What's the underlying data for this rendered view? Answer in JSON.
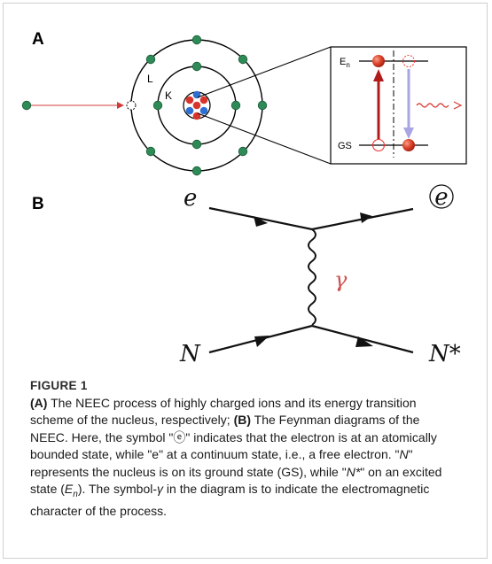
{
  "panels": {
    "a_letter": "A",
    "b_letter": "B"
  },
  "atom": {
    "shell_l": "L",
    "shell_k": "K"
  },
  "inset": {
    "upper_level": "E",
    "upper_level_sub": "n",
    "lower_level": "GS"
  },
  "feynman": {
    "e_in": "e",
    "e_out": "e",
    "n_in": "N",
    "n_out": "N*",
    "photon": "γ"
  },
  "caption": {
    "title": "FIGURE 1",
    "a_tag": "(A)",
    "a_text": " The NEEC process of highly charged ions and its energy transition scheme of the nucleus, respectively; ",
    "b_tag": "(B)",
    "b_text1": " The Feynman diagrams of the NEEC. Here, the symbol \"",
    "symbol_bound": "ⓔ",
    "b_text2": "\" indicates that the electron is at an atomically bounded state, while \"e\" at a continuum state, i.e., a free electron. \"",
    "n_symbol": "N",
    "b_text3": "\" represents the nucleus is on its ground state (GS), while \"",
    "nstar_symbol": "N*",
    "b_text4": "\" on an excited state (",
    "en_symbol": "E",
    "en_sub": "n",
    "b_text5": "). The symbol-",
    "gamma_symbol": "γ",
    "b_text6": " in the diagram is to indicate the electromagnetic character of the process."
  },
  "colors": {
    "electron_green": "#2e8b57",
    "proton_red": "#d9342b",
    "neutron_blue": "#2f6fd1",
    "arrow_red": "#b01c1c",
    "arrow_lavender": "#a9a6e3",
    "photon_red": "#d6382f"
  }
}
